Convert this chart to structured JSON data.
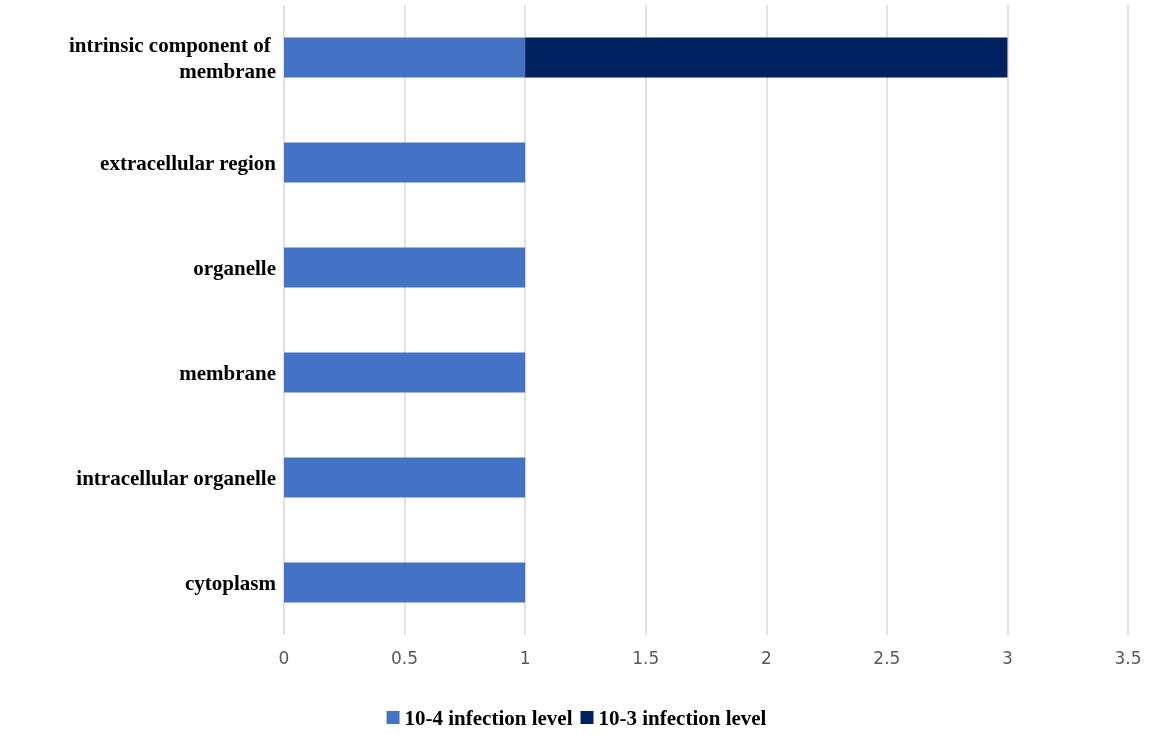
{
  "chart_data": {
    "type": "bar",
    "orientation": "horizontal",
    "stacked": true,
    "categories": [
      "intrinsic component of membrane",
      "extracellular region",
      "organelle",
      "membrane",
      "intracellular organelle",
      "cytoplasm"
    ],
    "series": [
      {
        "name": "10-4 infection level",
        "color": "#4472c4",
        "values": [
          1,
          1,
          1,
          1,
          1,
          1
        ]
      },
      {
        "name": "10-3 infection level",
        "color": "#002060",
        "values": [
          2,
          null,
          null,
          null,
          null,
          null
        ]
      }
    ],
    "xlim": [
      0,
      3.5
    ],
    "xticks": [
      0,
      0.5,
      1,
      1.5,
      2,
      2.5,
      3,
      3.5
    ],
    "grid": "x",
    "legend": "bottom"
  }
}
